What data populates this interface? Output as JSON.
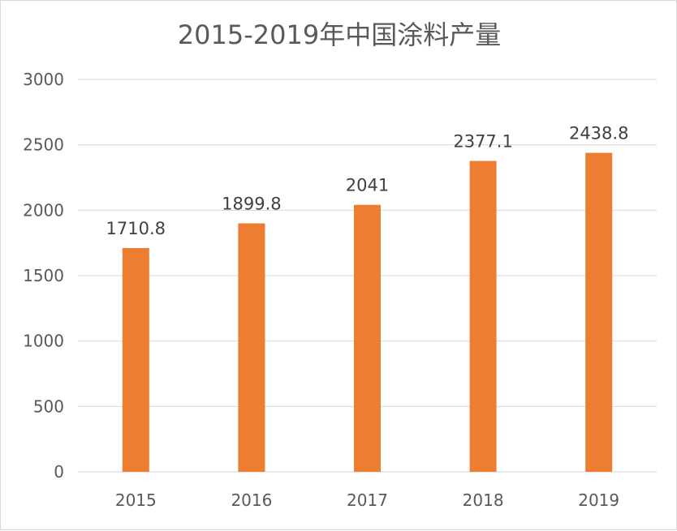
{
  "chart_data": {
    "type": "bar",
    "title": "2015-2019年中国涂料产量",
    "xlabel": "",
    "ylabel": "",
    "categories": [
      "2015",
      "2016",
      "2017",
      "2018",
      "2019"
    ],
    "values": [
      1710.8,
      1899.8,
      2041,
      2377.1,
      2438.8
    ],
    "data_labels": [
      "1710.8",
      "1899.8",
      "2041",
      "2377.1",
      "2438.8"
    ],
    "ylim": [
      0,
      3000
    ],
    "yticks": [
      "0",
      "500",
      "1000",
      "1500",
      "2000",
      "2500",
      "3000"
    ],
    "ytick_values": [
      0,
      500,
      1000,
      1500,
      2000,
      2500,
      3000
    ],
    "grid": true,
    "legend": "none",
    "bar_color": "#ED7D31"
  }
}
